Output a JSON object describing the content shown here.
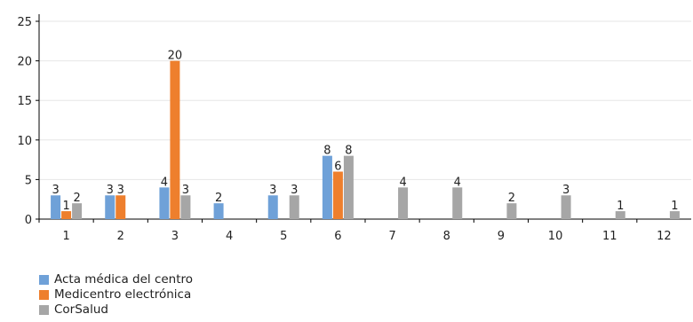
{
  "chart_data": {
    "type": "bar",
    "categories": [
      "1",
      "2",
      "3",
      "4",
      "5",
      "6",
      "7",
      "8",
      "9",
      "10",
      "11",
      "12"
    ],
    "ylim": [
      0,
      25
    ],
    "yticks": [
      0,
      5,
      10,
      15,
      20,
      25
    ],
    "grid": true,
    "legend_position": "bottom-left",
    "series": [
      {
        "name": "Acta médica del centro",
        "color": "#6fa1d8",
        "values": [
          3,
          3,
          4,
          2,
          3,
          8,
          null,
          null,
          null,
          null,
          null,
          null
        ]
      },
      {
        "name": "Medicentro electrónica",
        "color": "#ee7f2d",
        "values": [
          1,
          3,
          20,
          null,
          null,
          6,
          null,
          null,
          null,
          null,
          null,
          null
        ]
      },
      {
        "name": "CorSalud",
        "color": "#a6a6a6",
        "values": [
          2,
          null,
          3,
          null,
          3,
          8,
          4,
          4,
          2,
          3,
          1,
          1
        ]
      }
    ]
  }
}
